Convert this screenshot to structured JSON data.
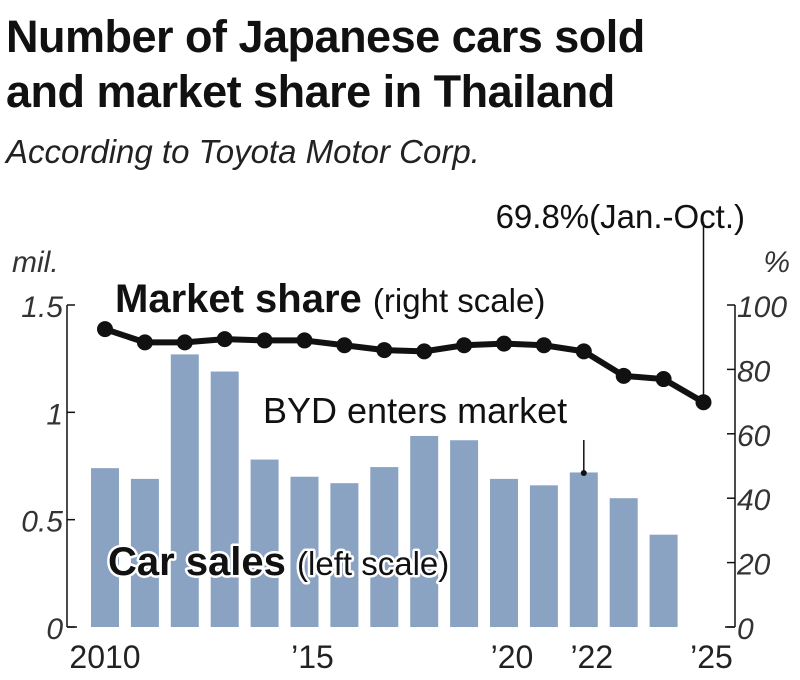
{
  "chart_data": {
    "type": "bar+line",
    "title": "Number of Japanese cars sold and market share in Thailand",
    "title_lines": [
      "Number of Japanese cars sold",
      "and market share in Thailand"
    ],
    "subtitle": "According to Toyota Motor Corp.",
    "left_unit": "mil.",
    "right_unit": "%",
    "ylim_left": [
      0,
      1.5
    ],
    "ylim_right": [
      0,
      100
    ],
    "left_ticks": [
      "0",
      "0.5",
      "1",
      "1.5"
    ],
    "right_ticks": [
      "0",
      "20",
      "40",
      "60",
      "80",
      "100"
    ],
    "x_tick_labels": [
      {
        "year": 2010,
        "label": "2010"
      },
      {
        "year": 2015,
        "label": "’15"
      },
      {
        "year": 2020,
        "label": "’20"
      },
      {
        "year": 2022,
        "label": "’22"
      },
      {
        "year": 2025,
        "label": "’25"
      }
    ],
    "bar_series": {
      "label_bold": "Car sales",
      "label_rest": "(left scale)",
      "color": "#8ba3c3",
      "years": [
        2010,
        2011,
        2012,
        2013,
        2014,
        2015,
        2016,
        2017,
        2018,
        2019,
        2020,
        2021,
        2022,
        2023,
        2024
      ],
      "values": [
        0.74,
        0.69,
        1.27,
        1.19,
        0.78,
        0.7,
        0.67,
        0.745,
        0.89,
        0.87,
        0.69,
        0.66,
        0.72,
        0.6,
        0.43
      ]
    },
    "line_series": {
      "label_bold": "Market share",
      "label_rest": "(right scale)",
      "color": "#111111",
      "years": [
        2010,
        2011,
        2012,
        2013,
        2014,
        2015,
        2016,
        2017,
        2018,
        2019,
        2020,
        2021,
        2022,
        2023,
        2024,
        2025
      ],
      "values": [
        92.5,
        88.4,
        88.4,
        89.4,
        89,
        89,
        87.5,
        86,
        85.6,
        87.5,
        88,
        87.5,
        85.6,
        78,
        77,
        69.8
      ]
    },
    "annotations": {
      "last_point": "69.8%(Jan.-Oct.)",
      "byd": "BYD enters market",
      "byd_year": 2022
    }
  }
}
